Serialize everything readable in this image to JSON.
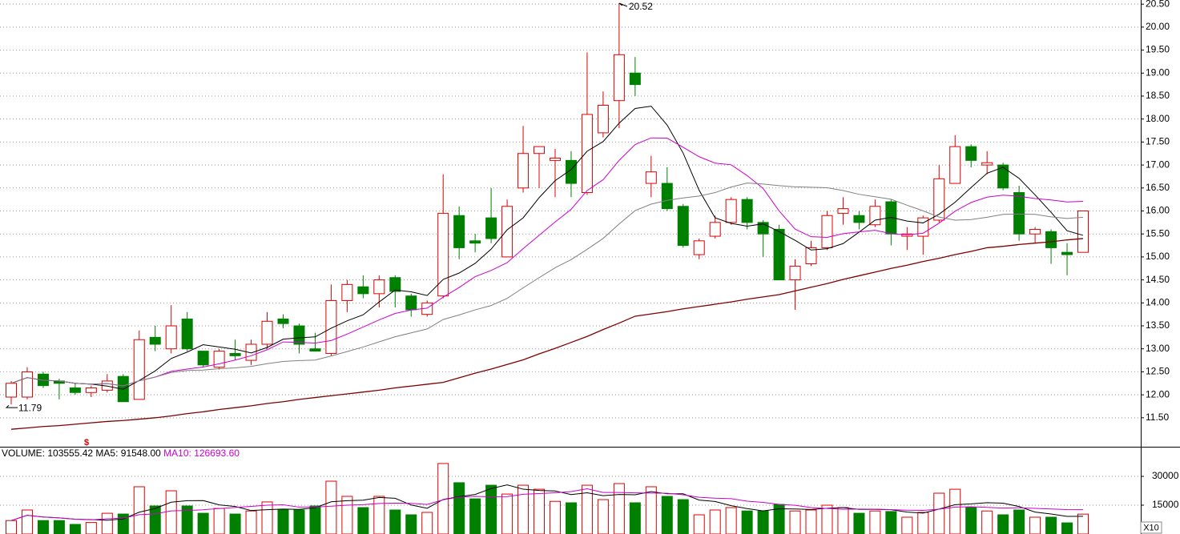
{
  "chart_data": {
    "type": "candlestick",
    "up_color": "#e00000",
    "down_color": "#008000",
    "open": [
      11.95,
      11.95,
      12.45,
      12.3,
      12.15,
      12.05,
      12.1,
      12.4,
      11.9,
      13.25,
      13.0,
      13.65,
      12.95,
      12.6,
      12.9,
      12.75,
      13.1,
      13.65,
      13.5,
      13.0,
      12.9,
      14.05,
      14.35,
      14.2,
      14.55,
      14.15,
      13.75,
      14.15,
      15.9,
      15.35,
      15.85,
      15.0,
      16.5,
      17.25,
      17.1,
      17.1,
      16.4,
      17.7,
      18.4,
      19.0,
      16.6,
      16.6,
      16.1,
      15.05,
      15.45,
      15.75,
      16.25,
      15.75,
      15.6,
      14.5,
      14.85,
      15.2,
      15.95,
      15.9,
      15.7,
      16.2,
      15.45,
      15.45,
      15.8,
      16.6,
      17.4,
      17.0,
      17.0,
      16.4,
      15.5,
      15.55,
      15.1,
      15.1
    ],
    "high": [
      12.3,
      12.6,
      12.5,
      12.35,
      12.25,
      12.2,
      12.45,
      12.45,
      13.4,
      13.5,
      13.95,
      13.8,
      12.95,
      13.0,
      13.2,
      13.2,
      13.8,
      13.75,
      13.55,
      13.35,
      14.4,
      14.5,
      14.6,
      14.6,
      14.6,
      14.2,
      14.05,
      16.8,
      16.1,
      15.5,
      16.5,
      16.25,
      17.85,
      17.4,
      17.35,
      17.3,
      19.45,
      18.6,
      20.52,
      19.35,
      17.2,
      16.95,
      16.15,
      15.4,
      15.9,
      16.3,
      16.3,
      15.8,
      15.7,
      14.95,
      15.35,
      16.0,
      16.3,
      16.0,
      16.25,
      16.25,
      15.65,
      15.9,
      17.0,
      17.65,
      17.45,
      17.3,
      17.05,
      16.55,
      15.65,
      15.6,
      15.3,
      16.0
    ],
    "low": [
      11.79,
      11.9,
      12.15,
      11.9,
      12.0,
      11.95,
      12.05,
      11.85,
      11.9,
      12.95,
      12.9,
      12.95,
      12.6,
      12.55,
      12.75,
      12.65,
      13.0,
      13.45,
      12.9,
      12.95,
      12.85,
      13.8,
      14.1,
      13.9,
      13.9,
      13.7,
      13.7,
      14.1,
      14.95,
      15.1,
      15.3,
      15.0,
      16.4,
      16.5,
      16.3,
      16.3,
      16.35,
      17.6,
      17.8,
      18.5,
      16.3,
      16.0,
      15.2,
      14.95,
      15.4,
      15.7,
      15.6,
      15.0,
      14.5,
      13.85,
      14.8,
      15.15,
      15.7,
      15.6,
      15.65,
      15.25,
      15.15,
      15.05,
      15.75,
      16.6,
      16.95,
      16.8,
      16.45,
      15.35,
      15.3,
      14.85,
      14.6,
      15.1
    ],
    "close": [
      12.25,
      12.5,
      12.2,
      12.25,
      12.05,
      12.15,
      12.3,
      11.85,
      13.2,
      13.1,
      13.5,
      13.0,
      12.65,
      12.95,
      12.85,
      13.1,
      13.6,
      13.55,
      13.1,
      12.95,
      14.05,
      14.4,
      14.2,
      14.5,
      14.25,
      13.85,
      14.0,
      15.95,
      15.2,
      15.3,
      15.4,
      16.1,
      17.25,
      17.4,
      17.15,
      16.6,
      18.1,
      18.3,
      19.4,
      18.75,
      16.85,
      16.05,
      15.25,
      15.35,
      15.75,
      16.25,
      15.75,
      15.5,
      14.5,
      14.8,
      15.2,
      15.9,
      16.05,
      15.75,
      16.1,
      15.5,
      15.5,
      15.85,
      16.7,
      17.4,
      17.1,
      17.05,
      16.5,
      15.5,
      15.6,
      15.2,
      15.05,
      16.0
    ],
    "volume": [
      7000,
      12500,
      7000,
      7000,
      5000,
      6000,
      10800,
      10400,
      24600,
      14600,
      22500,
      14600,
      10800,
      13300,
      10400,
      12000,
      16700,
      12500,
      12500,
      14600,
      27500,
      19600,
      13750,
      19600,
      12500,
      10000,
      11250,
      36700,
      26700,
      18300,
      25400,
      20800,
      25400,
      23300,
      17000,
      16250,
      25400,
      17900,
      26250,
      16250,
      24600,
      19600,
      17900,
      10000,
      12500,
      13750,
      12000,
      12000,
      15400,
      12000,
      12500,
      15000,
      13750,
      10800,
      12000,
      11700,
      8750,
      11250,
      21250,
      23300,
      13750,
      12000,
      10000,
      12500,
      8750,
      8750,
      5800,
      10355
    ],
    "ma60": [
      11.25,
      11.28,
      11.31,
      11.33,
      11.36,
      11.39,
      11.42,
      11.44,
      11.47,
      11.5,
      11.54,
      11.59,
      11.63,
      11.68,
      11.72,
      11.76,
      11.81,
      11.85,
      11.9,
      11.94,
      11.98,
      12.02,
      12.06,
      12.1,
      12.15,
      12.19,
      12.23,
      12.27,
      12.37,
      12.47,
      12.56,
      12.66,
      12.76,
      12.89,
      13.01,
      13.14,
      13.27,
      13.42,
      13.56,
      13.71,
      13.76,
      13.81,
      13.87,
      13.92,
      13.97,
      14.02,
      14.08,
      14.13,
      14.18,
      14.26,
      14.34,
      14.42,
      14.51,
      14.59,
      14.67,
      14.75,
      14.82,
      14.9,
      14.97,
      15.05,
      15.12,
      15.2,
      15.23,
      15.27,
      15.3,
      15.33,
      15.37,
      15.4
    ],
    "ma_colors": [
      "#000000",
      "#cc00cc",
      "#808080"
    ],
    "ma60_color": "#800000",
    "ylim": [
      10.87,
      20.59
    ],
    "yticks": [
      {
        "value": 20.5,
        "label": "20.50"
      },
      {
        "value": 20,
        "label": "20.00"
      },
      {
        "value": 19.5,
        "label": "19.50"
      },
      {
        "value": 19,
        "label": "19.00"
      },
      {
        "value": 18.5,
        "label": "18.50"
      },
      {
        "value": 18,
        "label": "18.00"
      },
      {
        "value": 17.5,
        "label": "17.50"
      },
      {
        "value": 17,
        "label": "17.00"
      },
      {
        "value": 16.5,
        "label": "16.50"
      },
      {
        "value": 16,
        "label": "16.00"
      },
      {
        "value": 15.5,
        "label": "15.50"
      },
      {
        "value": 15,
        "label": "15.00"
      },
      {
        "value": 14.5,
        "label": "14.50"
      },
      {
        "value": 14,
        "label": "14.00"
      },
      {
        "value": 13.5,
        "label": "13.50"
      },
      {
        "value": 13,
        "label": "13.00"
      },
      {
        "value": 12.5,
        "label": "12.50"
      },
      {
        "value": 12,
        "label": "12.00"
      },
      {
        "value": 11.5,
        "label": "11.50"
      }
    ],
    "vlim": [
      0,
      44600
    ],
    "vticks": [
      30000,
      15000
    ],
    "grid": true,
    "high_label": "20.52",
    "low_label": "11.79",
    "marker_label": "$",
    "volume_header": {
      "volume": "VOLUME: 103555.42",
      "ma5": "MA5: 91548.00",
      "ma10": "MA10: 126693.60"
    },
    "volume_unit": "X10"
  }
}
